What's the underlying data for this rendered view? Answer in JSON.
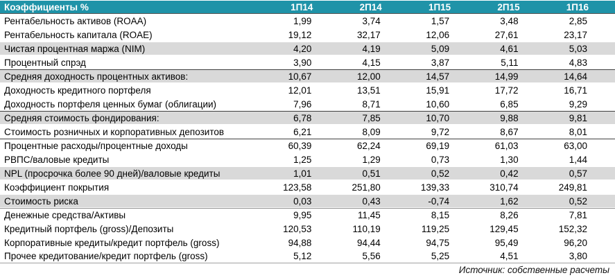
{
  "chart_data": {
    "type": "table",
    "title": "Коэффициенты %",
    "columns": [
      "1П14",
      "2П14",
      "1П15",
      "2П15",
      "1П16"
    ],
    "rows": [
      {
        "label": "Рентабельность активов (ROAA)",
        "values": [
          "1,99",
          "3,74",
          "1,57",
          "3,48",
          "2,85"
        ]
      },
      {
        "label": "Рентабельность капитала (ROAE)",
        "values": [
          "19,12",
          "32,17",
          "12,06",
          "27,61",
          "23,17"
        ]
      },
      {
        "label": "Чистая процентная маржа (NIM)",
        "values": [
          "4,20",
          "4,19",
          "5,09",
          "4,61",
          "5,03"
        ]
      },
      {
        "label": "Процентный спрэд",
        "values": [
          "3,90",
          "4,15",
          "3,87",
          "5,11",
          "4,83"
        ]
      },
      {
        "label": "Средняя доходность процентных активов:",
        "values": [
          "10,67",
          "12,00",
          "14,57",
          "14,99",
          "14,64"
        ]
      },
      {
        "label": "Доходность кредитного портфеля",
        "values": [
          "12,01",
          "13,51",
          "15,91",
          "17,72",
          "16,71"
        ]
      },
      {
        "label": "Доходность портфеля ценных бумаг (облигации)",
        "values": [
          "7,96",
          "8,71",
          "10,60",
          "6,85",
          "9,29"
        ]
      },
      {
        "label": "Средняя стоимость фондирования:",
        "values": [
          "6,78",
          "7,85",
          "10,70",
          "9,88",
          "9,81"
        ]
      },
      {
        "label": "Стоимость розничных и корпоративных депозитов",
        "values": [
          "6,21",
          "8,09",
          "9,72",
          "8,67",
          "8,01"
        ]
      },
      {
        "label": "Процентные расходы/процентные доходы",
        "values": [
          "60,39",
          "62,24",
          "69,19",
          "61,03",
          "63,00"
        ]
      },
      {
        "label": "РВПС/валовые кредиты",
        "values": [
          "1,25",
          "1,29",
          "0,73",
          "1,30",
          "1,44"
        ]
      },
      {
        "label": "NPL (просрочка более 90 дней)/валовые кредиты",
        "values": [
          "1,01",
          "0,51",
          "0,52",
          "0,42",
          "0,57"
        ]
      },
      {
        "label": "Коэффициент покрытия",
        "values": [
          "123,58",
          "251,80",
          "139,33",
          "310,74",
          "249,81"
        ]
      },
      {
        "label": "Стоимость риска",
        "values": [
          "0,03",
          "0,43",
          "-0,74",
          "1,62",
          "0,52"
        ]
      },
      {
        "label": "Денежные средства/Активы",
        "values": [
          "9,95",
          "11,45",
          "8,15",
          "8,26",
          "7,81"
        ]
      },
      {
        "label": "Кредитный портфель (gross)/Депозиты",
        "values": [
          "120,53",
          "110,19",
          "119,25",
          "129,45",
          "152,32"
        ]
      },
      {
        "label": "Корпоративные кредиты/кредит портфель (gross)",
        "values": [
          "94,88",
          "94,44",
          "94,75",
          "95,49",
          "96,20"
        ]
      },
      {
        "label": "Прочее кредитование/кредит портфель (gross)",
        "values": [
          "5,12",
          "5,56",
          "5,25",
          "4,51",
          "3,80"
        ]
      }
    ],
    "source_note": "Источник: собственные расчеты",
    "layout_hints": {
      "shaded_row_indexes": [
        2,
        4,
        7,
        11,
        13
      ],
      "dark_separator_above_indexes": [
        4,
        7,
        9
      ],
      "light_separator_above_indexes": [
        14
      ],
      "grid": "off",
      "value_alignment": "right"
    }
  },
  "colors": {
    "header_bg": "#1F93A8",
    "header_text": "#FFFFFF",
    "shaded_row": "#D9D9D9",
    "separator_dark": "#3F3F3F",
    "separator_light": "#A0A0A0",
    "text": "#000000"
  }
}
